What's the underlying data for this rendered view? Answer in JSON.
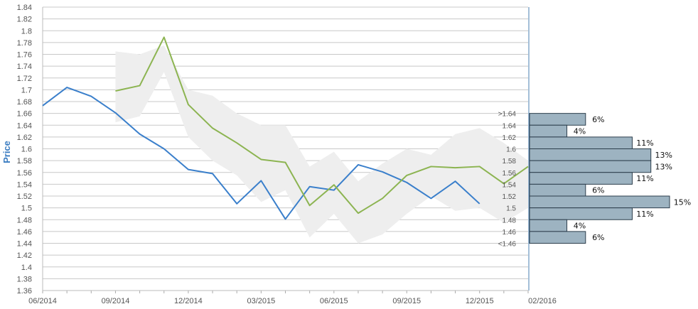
{
  "chart_data": {
    "type": "line",
    "ylabel": "Price",
    "xlabel": "",
    "ylim": [
      1.36,
      1.84
    ],
    "ytick_step": 0.02,
    "y_ticks": [
      "1.36",
      "1.38",
      "1.4",
      "1.42",
      "1.44",
      "1.46",
      "1.48",
      "1.5",
      "1.52",
      "1.54",
      "1.56",
      "1.58",
      "1.6",
      "1.62",
      "1.64",
      "1.66",
      "1.68",
      "1.7",
      "1.72",
      "1.74",
      "1.76",
      "1.78",
      "1.8",
      "1.82",
      "1.84"
    ],
    "x_ticks": [
      "06/2014",
      "09/2014",
      "12/2014",
      "03/2015",
      "06/2015",
      "09/2015",
      "12/2015",
      "02/2016"
    ],
    "grid": true,
    "x": [
      "06/2014",
      "07/2014",
      "08/2014",
      "09/2014",
      "10/2014",
      "11/2014",
      "12/2014",
      "01/2015",
      "02/2015",
      "03/2015",
      "04/2015",
      "05/2015",
      "06/2015",
      "07/2015",
      "08/2015",
      "09/2015",
      "10/2015",
      "11/2015",
      "12/2015",
      "01/2016",
      "02/2016"
    ],
    "series": [
      {
        "color": "#3a7fcb",
        "values": [
          1.673,
          1.704,
          1.689,
          1.661,
          1.625,
          1.6,
          1.565,
          1.558,
          1.507,
          1.546,
          1.481,
          1.536,
          1.53,
          1.573,
          1.561,
          1.543,
          1.516,
          1.545,
          1.507,
          null,
          null
        ]
      },
      {
        "color": "#8cb451",
        "values": [
          null,
          null,
          null,
          1.698,
          1.707,
          1.789,
          1.675,
          1.635,
          1.61,
          1.582,
          1.577,
          1.504,
          1.539,
          1.491,
          1.516,
          1.555,
          1.57,
          1.568,
          1.57,
          1.541,
          1.57
        ]
      }
    ],
    "band": {
      "color": "#eeeeee",
      "upper": [
        null,
        null,
        null,
        1.765,
        1.76,
        1.775,
        1.7,
        1.69,
        1.66,
        1.64,
        1.64,
        1.57,
        1.595,
        1.545,
        1.575,
        1.6,
        1.59,
        1.625,
        1.635,
        1.61,
        1.58
      ],
      "lower": [
        null,
        null,
        null,
        1.645,
        1.655,
        1.73,
        1.62,
        1.58,
        1.555,
        1.51,
        1.53,
        1.45,
        1.49,
        1.44,
        1.455,
        1.49,
        1.52,
        1.495,
        1.5,
        1.475,
        1.5
      ]
    },
    "distribution": {
      "color": "#9db3c1",
      "edge_color": "#2c3e4c",
      "bins": [
        {
          "label": ">1.64",
          "range": [
            1.64,
            1.66
          ],
          "pct": "6%",
          "value": 6
        },
        {
          "label": "1.64",
          "range": [
            1.62,
            1.64
          ],
          "pct": "4%",
          "value": 4
        },
        {
          "label": "1.62",
          "range": [
            1.6,
            1.62
          ],
          "pct": "11%",
          "value": 11
        },
        {
          "label": "1.6",
          "range": [
            1.58,
            1.6
          ],
          "pct": "13%",
          "value": 13
        },
        {
          "label": "1.58",
          "range": [
            1.56,
            1.58
          ],
          "pct": "13%",
          "value": 13
        },
        {
          "label": "1.56",
          "range": [
            1.54,
            1.56
          ],
          "pct": "11%",
          "value": 11
        },
        {
          "label": "1.54",
          "range": [
            1.52,
            1.54
          ],
          "pct": "6%",
          "value": 6
        },
        {
          "label": "1.52",
          "range": [
            1.5,
            1.52
          ],
          "pct": "15%",
          "value": 15
        },
        {
          "label": "1.5",
          "range": [
            1.48,
            1.5
          ],
          "pct": "11%",
          "value": 11
        },
        {
          "label": "1.48",
          "range": [
            1.46,
            1.48
          ],
          "pct": "4%",
          "value": 4
        },
        {
          "label": "1.46",
          "range": [
            1.44,
            1.46
          ],
          "pct": "6%",
          "value": 6
        }
      ],
      "extra_label": "<1.46"
    }
  }
}
